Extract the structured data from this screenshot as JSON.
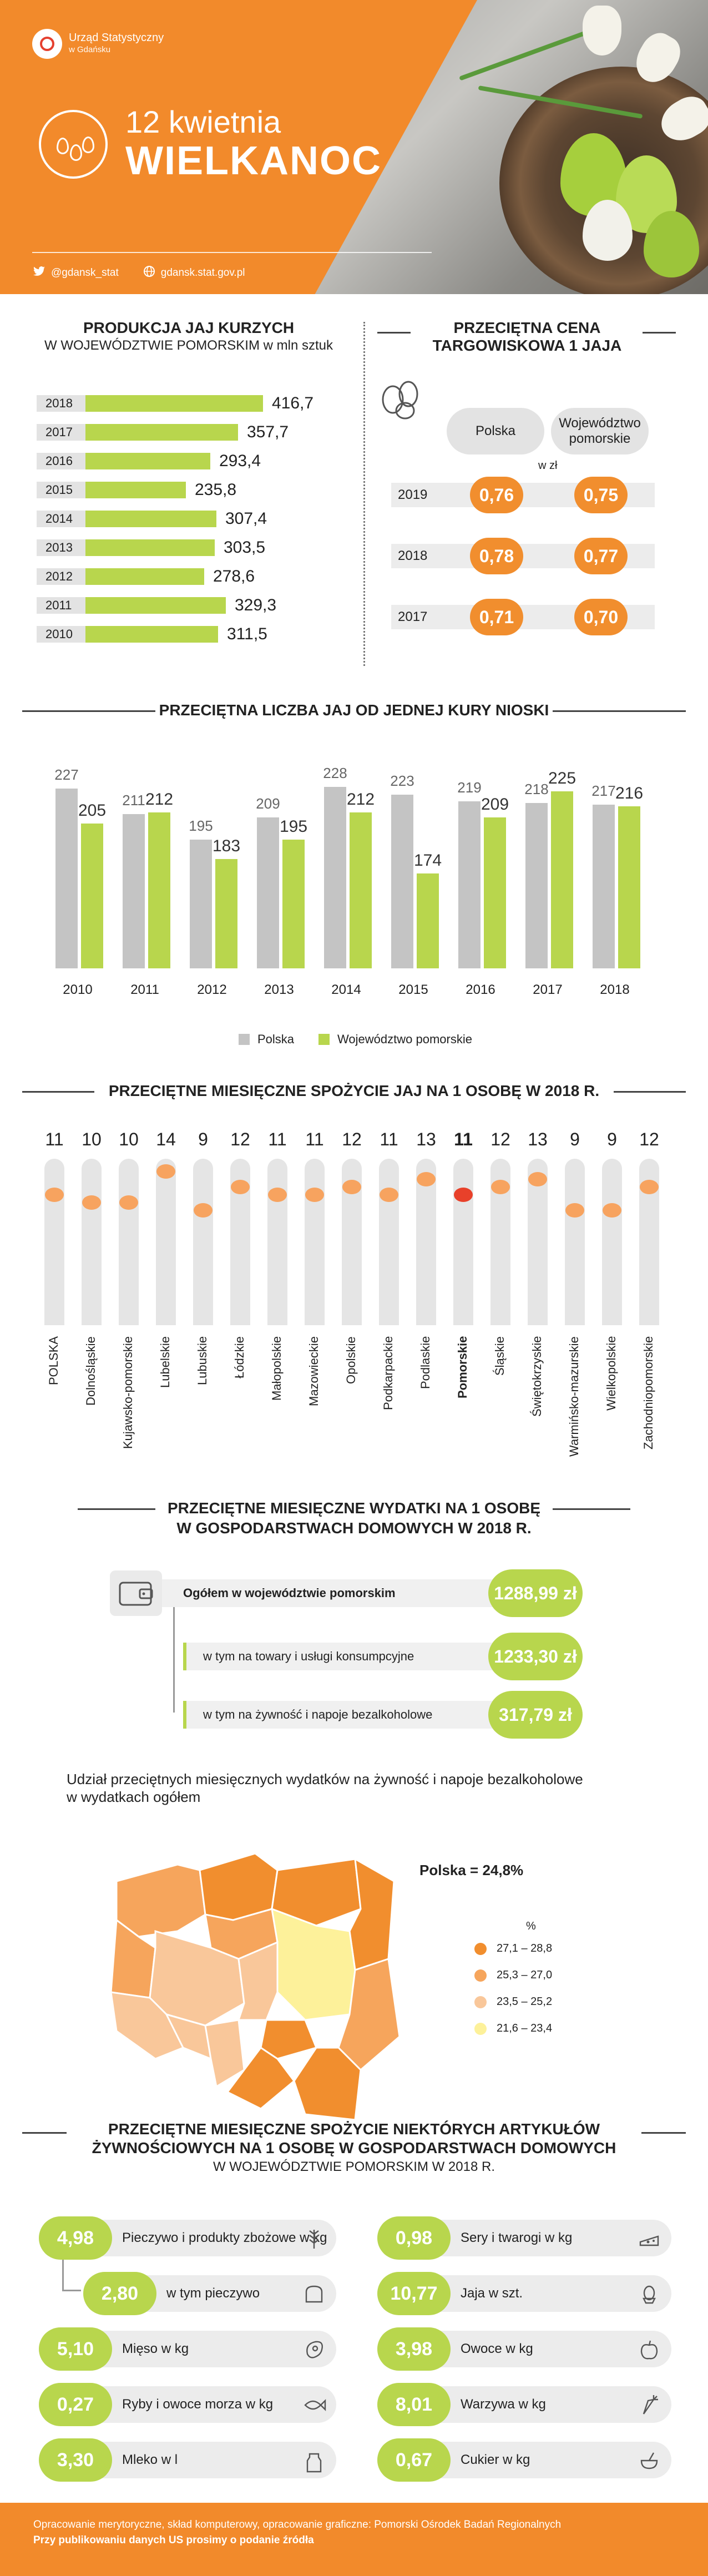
{
  "header": {
    "org_line1": "Urząd Statystyczny",
    "org_line2": "w Gdańsku",
    "date": "12 kwietnia",
    "title": "WIELKANOC",
    "twitter": "@gdansk_stat",
    "website": "gdansk.stat.gov.pl"
  },
  "production": {
    "title": "PRODUKCJA JAJ KURZYCH",
    "subtitle": "W WOJEWÓDZTWIE POMORSKIM w mln sztuk",
    "rows": [
      {
        "year": "2018",
        "value": 416.7,
        "label": "416,7"
      },
      {
        "year": "2017",
        "value": 357.7,
        "label": "357,7"
      },
      {
        "year": "2016",
        "value": 293.4,
        "label": "293,4"
      },
      {
        "year": "2015",
        "value": 235.8,
        "label": "235,8"
      },
      {
        "year": "2014",
        "value": 307.4,
        "label": "307,4"
      },
      {
        "year": "2013",
        "value": 303.5,
        "label": "303,5"
      },
      {
        "year": "2012",
        "value": 278.6,
        "label": "278,6"
      },
      {
        "year": "2011",
        "value": 329.3,
        "label": "329,3"
      },
      {
        "year": "2010",
        "value": 311.5,
        "label": "311,5"
      }
    ]
  },
  "price": {
    "title_line1": "PRZECIĘTNA CENA",
    "title_line2": "TARGOWISKOWA 1 JAJA",
    "col_polska": "Polska",
    "col_woj_line1": "Województwo",
    "col_woj_line2": "pomorskie",
    "unit": "w zł",
    "rows": [
      {
        "year": "2019",
        "polska": "0,76",
        "woj": "0,75"
      },
      {
        "year": "2018",
        "polska": "0,78",
        "woj": "0,77"
      },
      {
        "year": "2017",
        "polska": "0,71",
        "woj": "0,70"
      }
    ]
  },
  "hen": {
    "title": "PRZECIĘTNA LICZBA JAJ OD JEDNEJ KURY NIOSKI",
    "legend_polska": "Polska",
    "legend_woj": "Województwo pomorskie"
  },
  "consumption": {
    "title": "PRZECIĘTNE MIESIĘCZNE SPOŻYCIE JAJ NA 1 OSOBĘ W 2018 R.",
    "items": [
      {
        "label": "POLSKA",
        "value": "11"
      },
      {
        "label": "Dolnośląskie",
        "value": "10"
      },
      {
        "label": "Kujawsko-pomorskie",
        "value": "10"
      },
      {
        "label": "Lubelskie",
        "value": "14"
      },
      {
        "label": "Lubuskie",
        "value": "9"
      },
      {
        "label": "Łódzkie",
        "value": "12"
      },
      {
        "label": "Małopolskie",
        "value": "11"
      },
      {
        "label": "Mazowieckie",
        "value": "11"
      },
      {
        "label": "Opolskie",
        "value": "12"
      },
      {
        "label": "Podkarpackie",
        "value": "11"
      },
      {
        "label": "Podlaskie",
        "value": "13"
      },
      {
        "label": "Pomorskie",
        "value": "11"
      },
      {
        "label": "Śląskie",
        "value": "12"
      },
      {
        "label": "Świętokrzyskie",
        "value": "13"
      },
      {
        "label": "Warmińsko-mazurskie",
        "value": "9"
      },
      {
        "label": "Wielkopolskie",
        "value": "9"
      },
      {
        "label": "Zachodniopomorskie",
        "value": "12"
      }
    ]
  },
  "expenses": {
    "title_line1": "PRZECIĘTNE MIESIĘCZNE WYDATKI NA 1 OSOBĘ",
    "title_line2": "W GOSPODARSTWACH DOMOWYCH W 2018 R.",
    "total_label": "Ogółem w województwie pomorskim",
    "total_value": "1288,99 zł",
    "goods_label": "w tym na towary i usługi konsumpcyjne",
    "goods_value": "1233,30 zł",
    "food_label": "w tym na żywność i napoje bezalkoholowe",
    "food_value": "317,79 zł"
  },
  "map": {
    "title_line1": "Udział przeciętnych miesięcznych wydatków na żywność i napoje bezalkoholowe",
    "title_line2": "w wydatkach ogółem",
    "polska": "Polska = 24,8%",
    "unit": "%",
    "legend": [
      {
        "range": "27,1 – 28,8",
        "color": "#f18e2e"
      },
      {
        "range": "25,3 – 27,0",
        "color": "#f6a55c"
      },
      {
        "range": "23,5 – 25,2",
        "color": "#f9c79a"
      },
      {
        "range": "21,6 – 23,4",
        "color": "#fdf19a"
      }
    ]
  },
  "articles": {
    "title_line1": "PRZECIĘTNE MIESIĘCZNE SPOŻYCIE NIEKTÓRYCH ARTYKUŁÓW",
    "title_line2": "ŻYWNOŚCIOWYCH NA 1 OSOBĘ W GOSPODARSTWACH DOMOWYCH",
    "title_line3": "W WOJEWÓDZTWIE POMORSKIM W 2018 R.",
    "left": [
      {
        "value": "4,98",
        "label": "Pieczywo i produkty zbożowe w kg",
        "icon": "wheat-icon"
      },
      {
        "value": "2,80",
        "label": "w tym pieczywo",
        "icon": "bread-icon"
      },
      {
        "value": "5,10",
        "label": "Mięso w kg",
        "icon": "meat-icon"
      },
      {
        "value": "0,27",
        "label": "Ryby i owoce morza w kg",
        "icon": "fish-icon"
      },
      {
        "value": "3,30",
        "label": "Mleko w l",
        "icon": "milk-icon"
      }
    ],
    "right": [
      {
        "value": "0,98",
        "label": "Sery i twarogi w kg",
        "icon": "cheese-icon"
      },
      {
        "value": "10,77",
        "label": "Jaja w szt.",
        "icon": "egg-icon"
      },
      {
        "value": "3,98",
        "label": "Owoce w kg",
        "icon": "apple-icon"
      },
      {
        "value": "8,01",
        "label": "Warzywa w kg",
        "icon": "carrot-icon"
      },
      {
        "value": "0,67",
        "label": "Cukier w kg",
        "icon": "sugar-icon"
      }
    ]
  },
  "footer": {
    "line1": "Opracowanie merytoryczne, skład komputerowy, opracowanie graficzne: Pomorski Ośrodek Badań Regionalnych",
    "line2": "Przy publikowaniu danych US prosimy o podanie źródła"
  },
  "chart_data": [
    {
      "type": "bar",
      "title": "PRZECIĘTNA LICZBA JAJ OD JEDNEJ KURY NIOSKI",
      "categories": [
        "2010",
        "2011",
        "2012",
        "2013",
        "2014",
        "2015",
        "2016",
        "2017",
        "2018"
      ],
      "series": [
        {
          "name": "Polska",
          "color": "#c4c4c4",
          "values": [
            227,
            211,
            195,
            209,
            228,
            223,
            219,
            218,
            217
          ]
        },
        {
          "name": "Województwo pomorskie",
          "color": "#b8d64d",
          "values": [
            205,
            212,
            183,
            195,
            212,
            174,
            209,
            225,
            216
          ]
        }
      ],
      "legend": "bottom-center",
      "grid": false
    }
  ]
}
